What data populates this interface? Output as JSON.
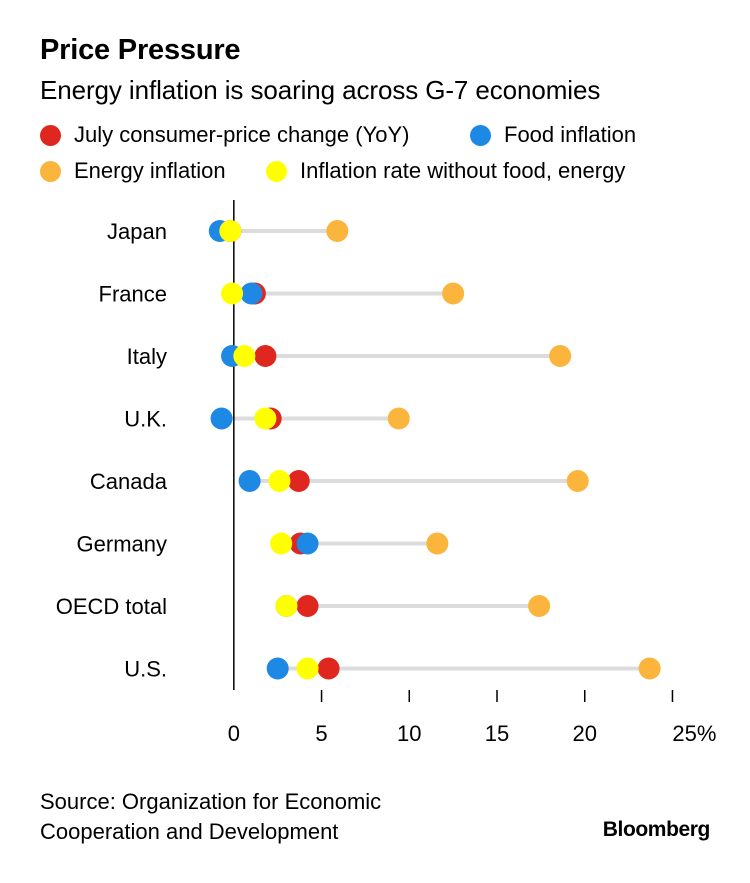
{
  "title": "Price Pressure",
  "subtitle": "Energy inflation is soaring across G-7 economies",
  "legend": [
    {
      "label": "July consumer-price change (YoY)",
      "color": "#e0271f"
    },
    {
      "label": "Food inflation",
      "color": "#1e88e5"
    },
    {
      "label": "Energy inflation",
      "color": "#fbb43c"
    },
    {
      "label": "Inflation rate without food, energy",
      "color": "#ffff00"
    }
  ],
  "source": "Source: Organization for Economic Cooperation and Development",
  "brand": "Bloomberg",
  "chart_data": {
    "type": "dot-range",
    "categories": [
      "Japan",
      "France",
      "Italy",
      "U.K.",
      "Canada",
      "Germany",
      "OECD total",
      "U.S."
    ],
    "series": [
      {
        "name": "July consumer-price change (YoY)",
        "color": "#e0271f",
        "values": [
          -0.2,
          1.2,
          1.8,
          2.1,
          3.7,
          3.8,
          4.2,
          5.4
        ]
      },
      {
        "name": "Food inflation",
        "color": "#1e88e5",
        "values": [
          -0.8,
          1.0,
          -0.1,
          -0.7,
          0.9,
          4.2,
          3.0,
          2.5
        ]
      },
      {
        "name": "Energy inflation",
        "color": "#fbb43c",
        "values": [
          5.9,
          12.5,
          18.6,
          9.4,
          19.6,
          11.6,
          17.4,
          23.7
        ]
      },
      {
        "name": "Inflation rate without food, energy",
        "color": "#ffff00",
        "values": [
          -0.2,
          -0.1,
          0.6,
          1.8,
          2.6,
          2.7,
          3.0,
          4.2
        ]
      }
    ],
    "x_ticks": [
      0,
      5,
      10,
      15,
      20,
      25
    ],
    "x_tick_labels": [
      "0",
      "5",
      "10",
      "15",
      "20",
      "25%"
    ],
    "xlim": [
      -1.7,
      26
    ],
    "grid": false
  }
}
